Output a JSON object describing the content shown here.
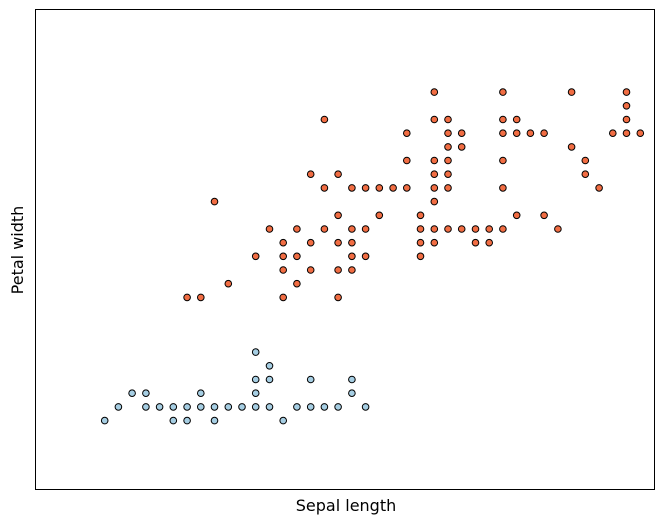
{
  "chart_data": {
    "type": "scatter",
    "title": "",
    "xlabel": "Sepal length",
    "ylabel": "Petal width",
    "xlim": [
      3.8,
      8.3
    ],
    "ylim": [
      -0.4,
      3.1
    ],
    "grid": false,
    "xticks": [],
    "yticks": [],
    "colors": {
      "class_0": "#a6cee3",
      "class_1": "#f16d43",
      "edge": "#000000"
    },
    "series": [
      {
        "key": "class_0",
        "points": [
          [
            4.3,
            0.1
          ],
          [
            4.4,
            0.2
          ],
          [
            4.5,
            0.3
          ],
          [
            4.6,
            0.2
          ],
          [
            4.6,
            0.3
          ],
          [
            4.7,
            0.2
          ],
          [
            4.8,
            0.1
          ],
          [
            4.8,
            0.2
          ],
          [
            4.9,
            0.1
          ],
          [
            4.9,
            0.2
          ],
          [
            5.0,
            0.2
          ],
          [
            5.0,
            0.3
          ],
          [
            5.1,
            0.1
          ],
          [
            5.1,
            0.2
          ],
          [
            5.2,
            0.2
          ],
          [
            5.3,
            0.2
          ],
          [
            5.4,
            0.2
          ],
          [
            5.4,
            0.3
          ],
          [
            5.4,
            0.4
          ],
          [
            5.4,
            0.6
          ],
          [
            5.5,
            0.2
          ],
          [
            5.5,
            0.4
          ],
          [
            5.5,
            0.5
          ],
          [
            5.6,
            0.1
          ],
          [
            5.7,
            0.2
          ],
          [
            5.8,
            0.2
          ],
          [
            5.8,
            0.4
          ],
          [
            5.9,
            0.2
          ],
          [
            6.0,
            0.2
          ],
          [
            6.1,
            0.3
          ],
          [
            6.1,
            0.4
          ],
          [
            6.2,
            0.2
          ]
        ]
      },
      {
        "key": "class_1",
        "points": [
          [
            4.9,
            1.0
          ],
          [
            5.0,
            1.0
          ],
          [
            5.1,
            1.7
          ],
          [
            5.2,
            1.1
          ],
          [
            5.4,
            1.3
          ],
          [
            5.5,
            1.5
          ],
          [
            5.6,
            1.0
          ],
          [
            5.6,
            1.2
          ],
          [
            5.6,
            1.3
          ],
          [
            5.6,
            1.4
          ],
          [
            5.7,
            1.1
          ],
          [
            5.7,
            1.3
          ],
          [
            5.7,
            1.5
          ],
          [
            5.8,
            1.2
          ],
          [
            5.8,
            1.4
          ],
          [
            5.8,
            1.9
          ],
          [
            5.9,
            1.5
          ],
          [
            5.9,
            1.8
          ],
          [
            5.9,
            2.3
          ],
          [
            6.0,
            1.0
          ],
          [
            6.0,
            1.2
          ],
          [
            6.0,
            1.4
          ],
          [
            6.0,
            1.6
          ],
          [
            6.0,
            1.9
          ],
          [
            6.1,
            1.2
          ],
          [
            6.1,
            1.3
          ],
          [
            6.1,
            1.4
          ],
          [
            6.1,
            1.5
          ],
          [
            6.1,
            1.8
          ],
          [
            6.2,
            1.3
          ],
          [
            6.2,
            1.5
          ],
          [
            6.2,
            1.8
          ],
          [
            6.3,
            1.6
          ],
          [
            6.3,
            1.8
          ],
          [
            6.4,
            1.8
          ],
          [
            6.5,
            1.8
          ],
          [
            6.5,
            2.0
          ],
          [
            6.5,
            2.2
          ],
          [
            6.6,
            1.3
          ],
          [
            6.6,
            1.4
          ],
          [
            6.6,
            1.5
          ],
          [
            6.6,
            1.6
          ],
          [
            6.7,
            1.4
          ],
          [
            6.7,
            1.5
          ],
          [
            6.7,
            1.7
          ],
          [
            6.7,
            1.8
          ],
          [
            6.7,
            1.9
          ],
          [
            6.7,
            2.0
          ],
          [
            6.7,
            2.3
          ],
          [
            6.7,
            2.5
          ],
          [
            6.8,
            1.5
          ],
          [
            6.8,
            1.8
          ],
          [
            6.8,
            1.9
          ],
          [
            6.8,
            2.0
          ],
          [
            6.8,
            2.1
          ],
          [
            6.8,
            2.2
          ],
          [
            6.8,
            2.3
          ],
          [
            6.9,
            1.5
          ],
          [
            6.9,
            2.1
          ],
          [
            6.9,
            2.2
          ],
          [
            7.0,
            1.4
          ],
          [
            7.0,
            1.5
          ],
          [
            7.1,
            1.5
          ],
          [
            7.1,
            1.4
          ],
          [
            7.2,
            1.5
          ],
          [
            7.2,
            1.8
          ],
          [
            7.2,
            2.0
          ],
          [
            7.2,
            2.2
          ],
          [
            7.2,
            2.3
          ],
          [
            7.2,
            2.5
          ],
          [
            7.3,
            1.6
          ],
          [
            7.3,
            2.2
          ],
          [
            7.3,
            2.3
          ],
          [
            7.4,
            2.2
          ],
          [
            7.5,
            1.6
          ],
          [
            7.5,
            2.2
          ],
          [
            7.6,
            1.5
          ],
          [
            7.7,
            2.1
          ],
          [
            7.7,
            2.5
          ],
          [
            7.8,
            1.9
          ],
          [
            7.8,
            2.0
          ],
          [
            7.9,
            1.8
          ],
          [
            8.0,
            2.2
          ],
          [
            8.1,
            2.2
          ],
          [
            8.1,
            2.3
          ],
          [
            8.1,
            2.4
          ],
          [
            8.1,
            2.5
          ],
          [
            8.2,
            2.2
          ]
        ]
      }
    ]
  }
}
